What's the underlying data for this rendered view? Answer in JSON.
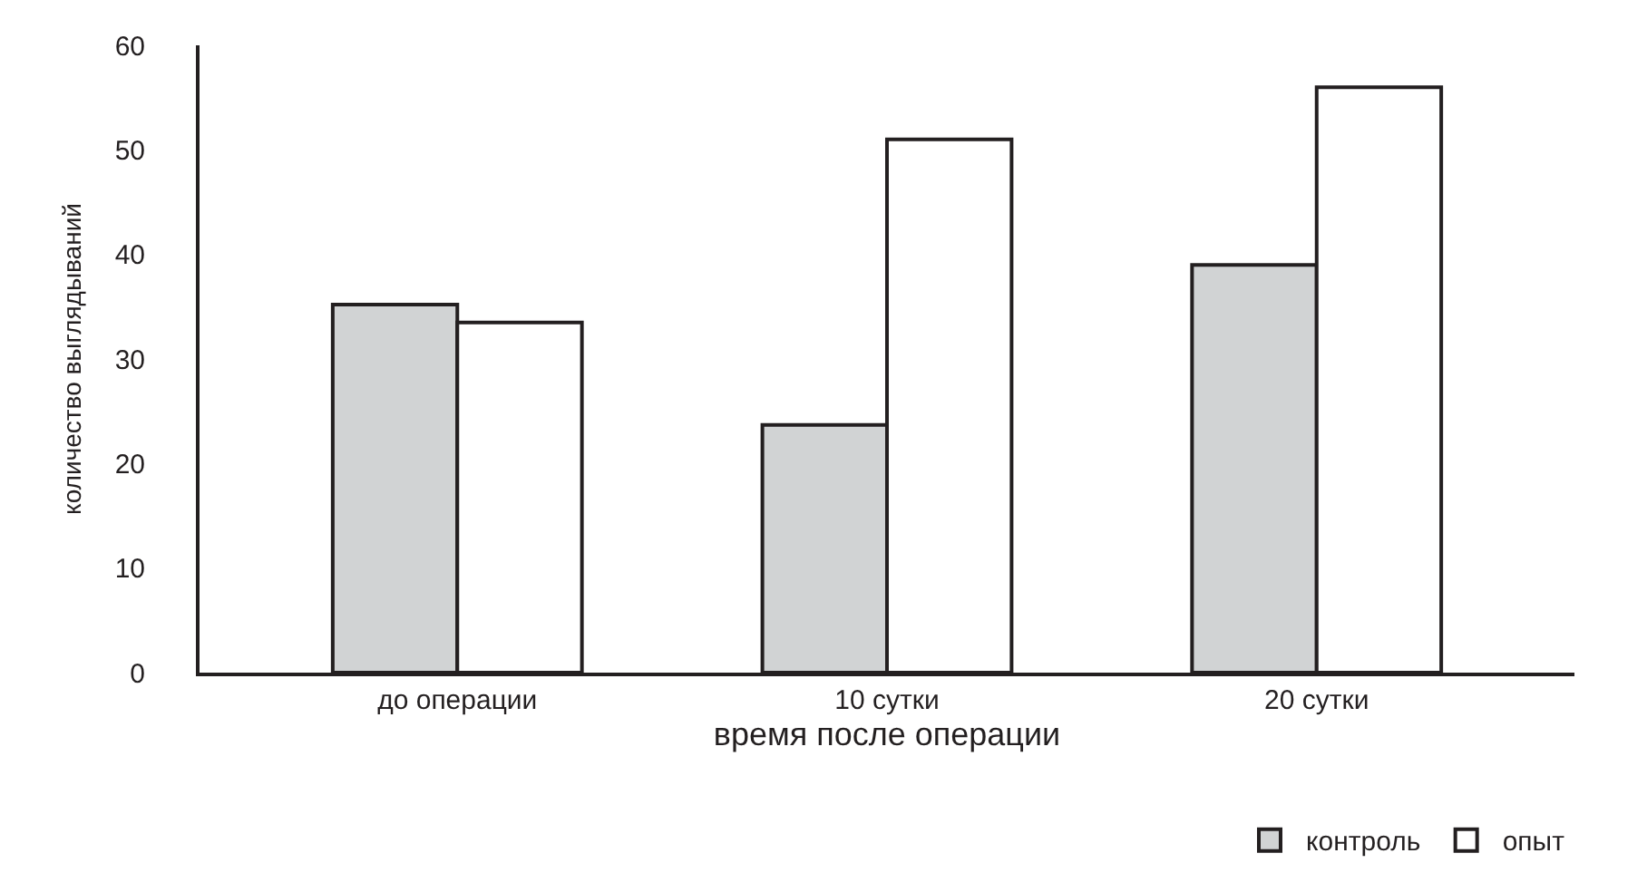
{
  "chart_data": {
    "type": "bar",
    "xlabel": "время после операции",
    "ylabel": "количество выглядываний",
    "categories": [
      "до операции",
      "10 сутки",
      "20 сутки"
    ],
    "series": [
      {
        "name": "контроль",
        "color": "#d1d3d4",
        "values": [
          35.2,
          23.7,
          39
        ]
      },
      {
        "name": "опыт",
        "color": "#ffffff",
        "values": [
          33.5,
          51,
          56
        ]
      }
    ],
    "ylim": [
      0,
      60
    ],
    "yticks": [
      0,
      10,
      20,
      30,
      40,
      50,
      60
    ],
    "legend": "bottom right"
  }
}
